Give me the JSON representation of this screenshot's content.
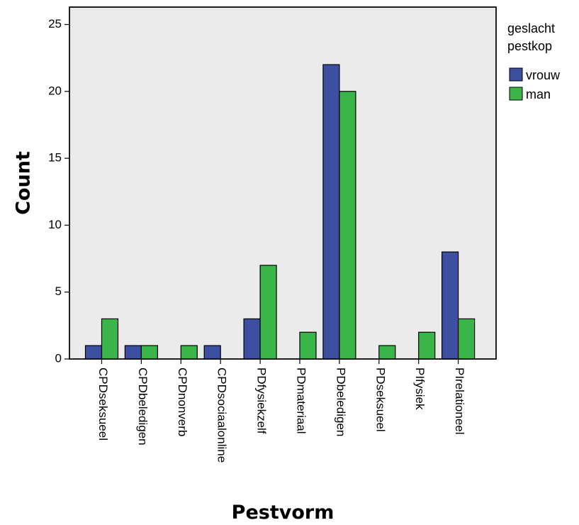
{
  "chart_data": {
    "type": "bar",
    "title": "",
    "xlabel": "Pestvorm",
    "ylabel": "Count",
    "ylim": [
      0,
      26.3
    ],
    "yticks": [
      "0",
      "5",
      "10",
      "15",
      "20",
      "25"
    ],
    "categories": [
      "CPDseksueel",
      "CPDbeledigen",
      "CPDnonverb",
      "CPDsociaalonline",
      "PDfysiekzelf",
      "PDmateriaal",
      "PDbeledigen",
      "PDseksueel",
      "PIfysiek",
      "PIrelationeel"
    ],
    "legend_title_line1": "geslacht",
    "legend_title_line2": "pestkop",
    "legend_position": "right-top",
    "grid": false,
    "plot_background": "#ebebeb",
    "series": [
      {
        "name": "vrouw",
        "color": "#3c4fa0",
        "values": [
          1,
          1,
          0,
          1,
          3,
          0,
          22,
          0,
          0,
          8
        ]
      },
      {
        "name": "man",
        "color": "#3ab54a",
        "values": [
          3,
          1,
          1,
          0,
          7,
          2,
          20,
          1,
          2,
          3
        ]
      }
    ]
  }
}
